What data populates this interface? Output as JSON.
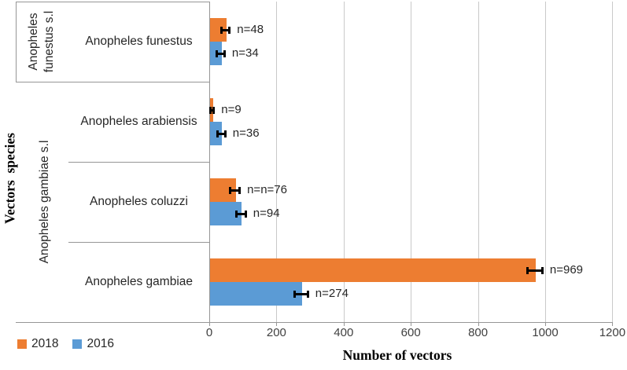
{
  "chart_data": {
    "type": "bar",
    "orientation": "horizontal",
    "title": "",
    "xlabel": "Number of vectors",
    "ylabel": "Vectors  species",
    "xlim": [
      0,
      1200
    ],
    "x_ticks": [
      0,
      200,
      400,
      600,
      800,
      1000,
      1200
    ],
    "grid": true,
    "legend_position": "bottom-left",
    "categories": [
      "Anopheles funestus",
      "Anopheles arabiensis",
      "Anopheles coluzzi",
      "Anopheles gambiae"
    ],
    "groups": [
      {
        "label_lines": [
          "Anopheles",
          "funestus s.l"
        ],
        "categories": [
          "Anopheles funestus"
        ]
      },
      {
        "label_lines": [
          "Anopheles gambiae s.l"
        ],
        "categories": [
          "Anopheles arabiensis",
          "Anopheles coluzzi",
          "Anopheles gambiae"
        ]
      }
    ],
    "series": [
      {
        "name": "2018",
        "color": "#ED7D31",
        "values": [
          48,
          9,
          76,
          969
        ],
        "errors": [
          16,
          8,
          18,
          26
        ],
        "labels": [
          "n=48",
          "n=9",
          "n=n=76",
          "n=969"
        ]
      },
      {
        "name": "2016",
        "color": "#5B9BD5",
        "values": [
          34,
          36,
          94,
          274
        ],
        "errors": [
          15,
          15,
          18,
          23
        ],
        "labels": [
          "n=34",
          "n=36",
          "n=94",
          "n=274"
        ]
      }
    ]
  },
  "colors": {
    "series_2018": "#ED7D31",
    "series_2016": "#5B9BD5",
    "gridline": "#c9c9c9",
    "frame": "#969696",
    "error_bar": "#000000",
    "text": "#262626",
    "tick_text": "#404040"
  }
}
